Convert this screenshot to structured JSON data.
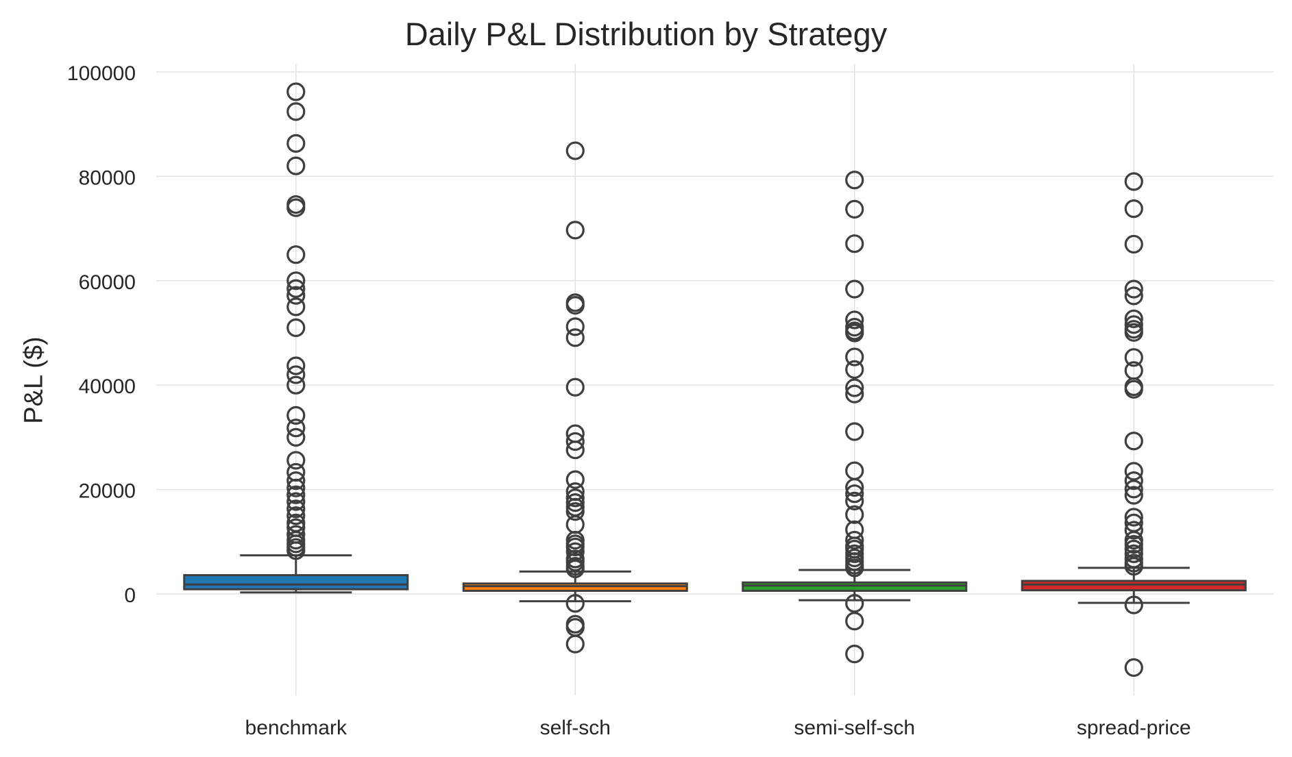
{
  "chart_data": {
    "type": "box",
    "title": "Daily P&L Distribution by Strategy",
    "xlabel": "",
    "ylabel": "P&L ($)",
    "ylim": [
      -19500,
      101500
    ],
    "yticks": [
      0,
      20000,
      40000,
      60000,
      80000,
      100000
    ],
    "grid": true,
    "categories": [
      "benchmark",
      "self-sch",
      "semi-self-sch",
      "spread-price"
    ],
    "series": [
      {
        "category": "benchmark",
        "color": "#1f77b4",
        "whisker_low": 300,
        "q1": 900,
        "median": 1800,
        "q3": 3600,
        "whisker_high": 7400,
        "outliers": [
          96200,
          92400,
          86300,
          82000,
          74600,
          74000,
          65000,
          60000,
          58500,
          57200,
          55000,
          51000,
          43700,
          42000,
          40000,
          34200,
          31800,
          30000,
          25600,
          23300,
          21700,
          20300,
          19000,
          17700,
          16300,
          15000,
          13600,
          12700,
          11400,
          10300,
          9600,
          8900,
          8300
        ]
      },
      {
        "category": "self-sch",
        "color": "#ff7f0e",
        "whisker_low": -1400,
        "q1": 600,
        "median": 1500,
        "q3": 2000,
        "whisker_high": 4300,
        "outliers": [
          84900,
          69700,
          55800,
          55300,
          51200,
          49100,
          39600,
          30700,
          29200,
          27600,
          21900,
          19600,
          18400,
          17500,
          16600,
          15800,
          13300,
          10300,
          9600,
          9000,
          8100,
          6700,
          6100,
          5300,
          4800,
          -1800,
          -5800,
          -6400,
          -9600
        ]
      },
      {
        "category": "semi-self-sch",
        "color": "#2ca02c",
        "whisker_low": -1200,
        "q1": 600,
        "median": 1600,
        "q3": 2200,
        "whisker_high": 4600,
        "outliers": [
          79300,
          73700,
          67100,
          58400,
          52500,
          51100,
          50400,
          50000,
          45400,
          43000,
          39500,
          38300,
          31100,
          23600,
          20400,
          19200,
          17800,
          15200,
          12300,
          10300,
          9200,
          8600,
          7700,
          6900,
          6200,
          5500,
          5000,
          -1800,
          -5200,
          -11500
        ]
      },
      {
        "category": "spread-price",
        "color": "#d62728",
        "whisker_low": -1700,
        "q1": 700,
        "median": 1800,
        "q3": 2500,
        "whisker_high": 5000,
        "outliers": [
          79000,
          73800,
          67000,
          58400,
          57100,
          52700,
          51600,
          50700,
          50100,
          45300,
          42800,
          39700,
          39200,
          29300,
          23500,
          21700,
          20100,
          18900,
          14700,
          13600,
          12200,
          10300,
          9500,
          8600,
          7700,
          6700,
          5900,
          5300,
          -2100,
          -14100
        ]
      }
    ]
  }
}
